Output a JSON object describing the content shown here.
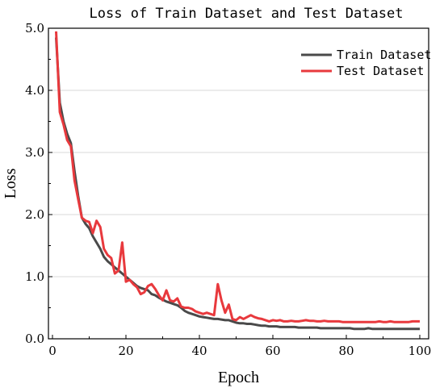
{
  "chart_data": {
    "type": "line",
    "title": "Loss of Train Dataset and Test Dataset",
    "xlabel": "Epoch",
    "ylabel": "Loss",
    "xlim": [
      0,
      102
    ],
    "ylim": [
      0,
      5.0
    ],
    "xticks": [
      0,
      20,
      40,
      60,
      80,
      100
    ],
    "yticks": [
      0.0,
      1.0,
      2.0,
      3.0,
      4.0,
      5.0
    ],
    "grid": "horizontal",
    "legend_position": "top-right",
    "series": [
      {
        "name": "Train Dataset",
        "color": "#4a4a4a",
        "x": [
          1,
          2,
          3,
          4,
          5,
          6,
          7,
          8,
          9,
          10,
          11,
          12,
          13,
          14,
          15,
          16,
          17,
          18,
          19,
          20,
          21,
          22,
          23,
          24,
          25,
          26,
          27,
          28,
          29,
          30,
          31,
          32,
          33,
          34,
          35,
          36,
          37,
          38,
          39,
          40,
          41,
          42,
          43,
          44,
          45,
          46,
          47,
          48,
          49,
          50,
          51,
          52,
          53,
          54,
          55,
          56,
          57,
          58,
          59,
          60,
          61,
          62,
          63,
          64,
          65,
          66,
          67,
          68,
          69,
          70,
          71,
          72,
          73,
          74,
          75,
          76,
          77,
          78,
          79,
          80,
          81,
          82,
          83,
          84,
          85,
          86,
          87,
          88,
          89,
          90,
          91,
          92,
          93,
          94,
          95,
          96,
          97,
          98,
          99,
          100
        ],
        "values": [
          4.85,
          3.8,
          3.5,
          3.3,
          3.15,
          2.7,
          2.3,
          1.95,
          1.85,
          1.78,
          1.65,
          1.55,
          1.45,
          1.32,
          1.25,
          1.2,
          1.15,
          1.1,
          1.05,
          1.0,
          0.95,
          0.9,
          0.85,
          0.82,
          0.8,
          0.78,
          0.72,
          0.7,
          0.66,
          0.63,
          0.6,
          0.58,
          0.56,
          0.54,
          0.5,
          0.45,
          0.42,
          0.4,
          0.38,
          0.36,
          0.35,
          0.34,
          0.33,
          0.32,
          0.32,
          0.31,
          0.3,
          0.3,
          0.28,
          0.26,
          0.25,
          0.25,
          0.24,
          0.24,
          0.23,
          0.22,
          0.21,
          0.21,
          0.2,
          0.2,
          0.2,
          0.19,
          0.19,
          0.19,
          0.19,
          0.19,
          0.18,
          0.18,
          0.18,
          0.18,
          0.18,
          0.18,
          0.17,
          0.17,
          0.17,
          0.17,
          0.17,
          0.17,
          0.17,
          0.17,
          0.17,
          0.16,
          0.16,
          0.16,
          0.16,
          0.17,
          0.16,
          0.16,
          0.16,
          0.16,
          0.16,
          0.16,
          0.16,
          0.16,
          0.16,
          0.16,
          0.16,
          0.16,
          0.16,
          0.16
        ]
      },
      {
        "name": "Test Dataset",
        "color": "#e8393d",
        "x": [
          1,
          2,
          3,
          4,
          5,
          6,
          7,
          8,
          9,
          10,
          11,
          12,
          13,
          14,
          15,
          16,
          17,
          18,
          19,
          20,
          21,
          22,
          23,
          24,
          25,
          26,
          27,
          28,
          29,
          30,
          31,
          32,
          33,
          34,
          35,
          36,
          37,
          38,
          39,
          40,
          41,
          42,
          43,
          44,
          45,
          46,
          47,
          48,
          49,
          50,
          51,
          52,
          53,
          54,
          55,
          56,
          57,
          58,
          59,
          60,
          61,
          62,
          63,
          64,
          65,
          66,
          67,
          68,
          69,
          70,
          71,
          72,
          73,
          74,
          75,
          76,
          77,
          78,
          79,
          80,
          81,
          82,
          83,
          84,
          85,
          86,
          87,
          88,
          89,
          90,
          91,
          92,
          93,
          94,
          95,
          96,
          97,
          98,
          99,
          100
        ],
        "values": [
          4.95,
          3.65,
          3.45,
          3.2,
          3.1,
          2.55,
          2.25,
          1.95,
          1.9,
          1.88,
          1.7,
          1.9,
          1.8,
          1.45,
          1.35,
          1.3,
          1.05,
          1.1,
          1.55,
          0.92,
          0.95,
          0.88,
          0.83,
          0.72,
          0.75,
          0.85,
          0.88,
          0.8,
          0.7,
          0.62,
          0.78,
          0.62,
          0.6,
          0.65,
          0.52,
          0.5,
          0.5,
          0.48,
          0.44,
          0.42,
          0.4,
          0.42,
          0.4,
          0.38,
          0.88,
          0.62,
          0.42,
          0.55,
          0.32,
          0.3,
          0.35,
          0.32,
          0.35,
          0.38,
          0.35,
          0.33,
          0.32,
          0.3,
          0.28,
          0.3,
          0.29,
          0.3,
          0.28,
          0.28,
          0.29,
          0.28,
          0.28,
          0.29,
          0.3,
          0.29,
          0.29,
          0.28,
          0.28,
          0.29,
          0.28,
          0.28,
          0.28,
          0.28,
          0.27,
          0.27,
          0.27,
          0.27,
          0.27,
          0.27,
          0.27,
          0.27,
          0.27,
          0.27,
          0.28,
          0.27,
          0.27,
          0.28,
          0.27,
          0.27,
          0.27,
          0.27,
          0.27,
          0.28,
          0.28,
          0.28
        ]
      }
    ]
  }
}
